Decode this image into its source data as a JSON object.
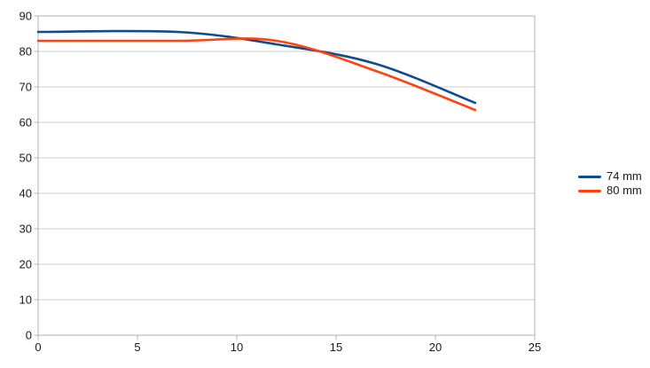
{
  "chart_data": {
    "type": "line",
    "title": "",
    "x": [
      0,
      7,
      12,
      17,
      22
    ],
    "series": [
      {
        "name": "74 mm",
        "color": "#0f4c8e",
        "values": [
          85.5,
          85.5,
          82,
          76.5,
          65.5
        ]
      },
      {
        "name": "80 mm",
        "color": "#ff420e",
        "values": [
          83,
          83,
          83,
          74.5,
          63.5
        ]
      }
    ],
    "xlim": [
      0,
      25
    ],
    "ylim": [
      0,
      90
    ],
    "x_ticks": [
      0,
      5,
      10,
      15,
      20,
      25
    ],
    "y_ticks": [
      0,
      10,
      20,
      30,
      40,
      50,
      60,
      70,
      80,
      90
    ],
    "grid": "horizontal-only",
    "smooth": true,
    "legend_position": "right",
    "colors": {
      "axis": "#b3b3b3",
      "gridline": "#cccccc",
      "text": "#1a1a1a",
      "background": "#ffffff"
    }
  }
}
